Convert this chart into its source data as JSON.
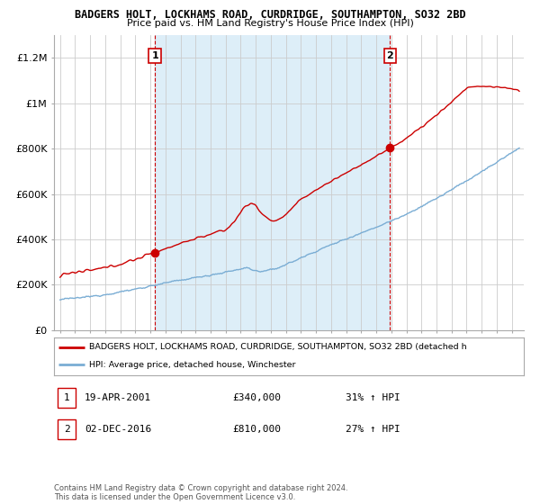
{
  "title": "BADGERS HOLT, LOCKHAMS ROAD, CURDRIDGE, SOUTHAMPTON, SO32 2BD",
  "subtitle": "Price paid vs. HM Land Registry's House Price Index (HPI)",
  "ylim": [
    0,
    1300000
  ],
  "yticks": [
    0,
    200000,
    400000,
    600000,
    800000,
    1000000,
    1200000
  ],
  "ytick_labels": [
    "£0",
    "£200K",
    "£400K",
    "£600K",
    "£800K",
    "£1M",
    "£1.2M"
  ],
  "sale1_year": 2001.3,
  "sale1_price": 340000,
  "sale1_label": "1",
  "sale2_year": 2016.92,
  "sale2_price": 810000,
  "sale2_label": "2",
  "legend_red": "BADGERS HOLT, LOCKHAMS ROAD, CURDRIDGE, SOUTHAMPTON, SO32 2BD (detached h",
  "legend_blue": "HPI: Average price, detached house, Winchester",
  "annotation1_date": "19-APR-2001",
  "annotation1_price": "£340,000",
  "annotation1_hpi": "31% ↑ HPI",
  "annotation2_date": "02-DEC-2016",
  "annotation2_price": "£810,000",
  "annotation2_hpi": "27% ↑ HPI",
  "footer": "Contains HM Land Registry data © Crown copyright and database right 2024.\nThis data is licensed under the Open Government Licence v3.0.",
  "red_color": "#cc0000",
  "blue_color": "#7aadd4",
  "shade_color": "#ddeef8",
  "dashed_color": "#cc0000",
  "background_color": "#ffffff",
  "grid_color": "#cccccc"
}
